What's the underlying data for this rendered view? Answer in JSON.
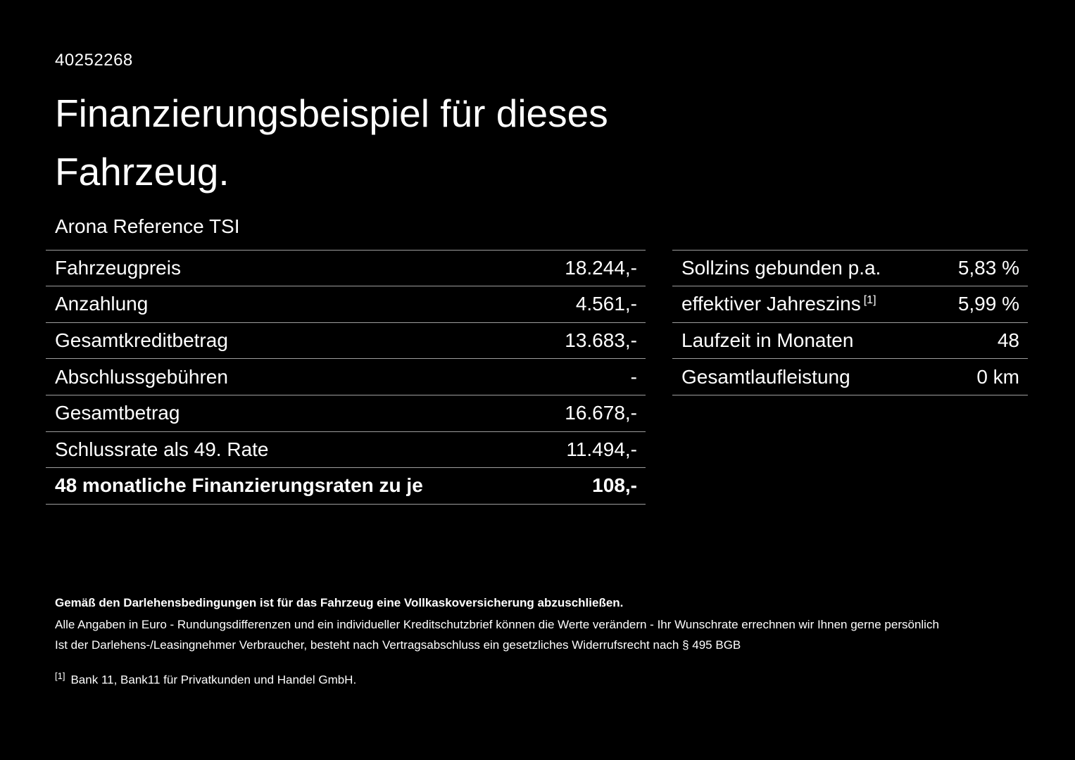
{
  "doc": {
    "id": "40252268",
    "title": "Finanzierungsbeispiel für dieses Fahrzeug.",
    "vehicle": "Arona Reference TSI"
  },
  "left_table": {
    "rows": [
      {
        "label": "Fahrzeugpreis",
        "value": "18.244,-"
      },
      {
        "label": "Anzahlung",
        "value": "4.561,-"
      },
      {
        "label": "Gesamtkreditbetrag",
        "value": "13.683,-"
      },
      {
        "label": "Abschlussgebühren",
        "value": "-"
      },
      {
        "label": "Gesamtbetrag",
        "value": "16.678,-"
      },
      {
        "label": "Schlussrate als 49. Rate",
        "value": "11.494,-"
      },
      {
        "label": "48 monatliche Finanzierungsraten zu je",
        "value": "108,-"
      }
    ]
  },
  "right_table": {
    "rows": [
      {
        "label": "Sollzins gebunden p.a.",
        "value": "5,83 %"
      },
      {
        "label": "effektiver Jahreszins",
        "sup": "[1]",
        "value": "5,99 %"
      },
      {
        "label": "Laufzeit in Monaten",
        "value": "48"
      },
      {
        "label": "Gesamtlaufleistung",
        "value": "0 km"
      }
    ]
  },
  "footer": {
    "line1": "Gemäß den Darlehensbedingungen ist für das Fahrzeug eine Vollkaskoversicherung abzuschließen.",
    "line2": "Alle Angaben in Euro - Rundungsdifferenzen und ein individueller Kreditschutzbrief können die Werte verändern - Ihr Wunschrate errechnen wir Ihnen gerne persönlich",
    "line3": "Ist der Darlehens-/Leasingnehmer Verbraucher, besteht nach Vertragsabschluss ein gesetzliches Widerrufsrecht nach § 495 BGB",
    "footnote_marker": "[1]",
    "footnote": "Bank 11, Bank11 für Privatkunden und Handel GmbH."
  },
  "colors": {
    "background": "#000000",
    "text": "#ffffff",
    "divider": "#9e9e9e"
  }
}
